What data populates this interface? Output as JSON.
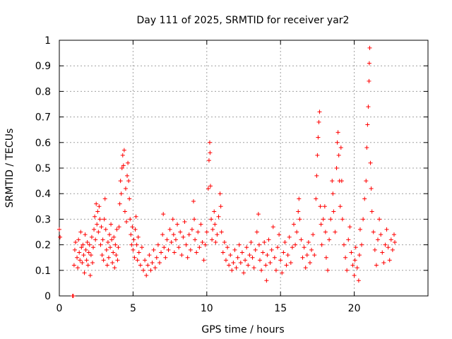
{
  "chart_data": {
    "type": "scatter",
    "title": "Day 111 of 2025, SRMTID for receiver yar2",
    "xlabel": "GPS time / hours",
    "ylabel": "SRMTID / TECUs",
    "xlim": [
      0,
      25
    ],
    "ylim": [
      0,
      1
    ],
    "xticks": [
      0,
      5,
      10,
      15,
      20
    ],
    "yticks": [
      0,
      0.1,
      0.2,
      0.3,
      0.4,
      0.5,
      0.6,
      0.7,
      0.8,
      0.9,
      1
    ],
    "xtick_labels": [
      "0",
      "5",
      "10",
      "15",
      "20"
    ],
    "ytick_labels": [
      "0",
      "0.1",
      "0.2",
      "0.3",
      "0.4",
      "0.5",
      "0.6",
      "0.7",
      "0.8",
      "0.9",
      "1"
    ],
    "grid": true,
    "marker": "plus",
    "color": "#ff0000",
    "series": [
      {
        "name": "SRMTID",
        "points": [
          [
            0.0,
            0.26
          ],
          [
            0.05,
            0.23
          ],
          [
            0.9,
            0.0
          ],
          [
            0.95,
            0.0
          ],
          [
            1.0,
            0.12
          ],
          [
            1.05,
            0.18
          ],
          [
            1.1,
            0.21
          ],
          [
            1.2,
            0.15
          ],
          [
            1.25,
            0.11
          ],
          [
            1.3,
            0.22
          ],
          [
            1.35,
            0.17
          ],
          [
            1.4,
            0.14
          ],
          [
            1.45,
            0.25
          ],
          [
            1.5,
            0.19
          ],
          [
            1.55,
            0.13
          ],
          [
            1.6,
            0.2
          ],
          [
            1.65,
            0.16
          ],
          [
            1.7,
            0.09
          ],
          [
            1.75,
            0.24
          ],
          [
            1.8,
            0.18
          ],
          [
            1.85,
            0.14
          ],
          [
            1.9,
            0.21
          ],
          [
            1.95,
            0.12
          ],
          [
            2.0,
            0.17
          ],
          [
            2.05,
            0.2
          ],
          [
            2.1,
            0.08
          ],
          [
            2.15,
            0.16
          ],
          [
            2.2,
            0.23
          ],
          [
            2.25,
            0.13
          ],
          [
            2.3,
            0.19
          ],
          [
            2.35,
            0.26
          ],
          [
            2.4,
            0.31
          ],
          [
            2.45,
            0.22
          ],
          [
            2.5,
            0.36
          ],
          [
            2.55,
            0.28
          ],
          [
            2.6,
            0.33
          ],
          [
            2.65,
            0.25
          ],
          [
            2.7,
            0.35
          ],
          [
            2.75,
            0.3
          ],
          [
            2.8,
            0.2
          ],
          [
            2.85,
            0.27
          ],
          [
            2.9,
            0.16
          ],
          [
            2.95,
            0.22
          ],
          [
            3.0,
            0.14
          ],
          [
            3.05,
            0.3
          ],
          [
            3.1,
            0.38
          ],
          [
            3.15,
            0.26
          ],
          [
            3.2,
            0.18
          ],
          [
            3.25,
            0.12
          ],
          [
            3.3,
            0.21
          ],
          [
            3.35,
            0.15
          ],
          [
            3.4,
            0.24
          ],
          [
            3.45,
            0.19
          ],
          [
            3.5,
            0.28
          ],
          [
            3.55,
            0.22
          ],
          [
            3.6,
            0.13
          ],
          [
            3.65,
            0.17
          ],
          [
            3.7,
            0.23
          ],
          [
            3.75,
            0.11
          ],
          [
            3.8,
            0.2
          ],
          [
            3.85,
            0.16
          ],
          [
            3.9,
            0.26
          ],
          [
            3.95,
            0.14
          ],
          [
            4.0,
            0.19
          ],
          [
            4.05,
            0.27
          ],
          [
            4.1,
            0.36
          ],
          [
            4.15,
            0.45
          ],
          [
            4.2,
            0.4
          ],
          [
            4.25,
            0.5
          ],
          [
            4.3,
            0.55
          ],
          [
            4.35,
            0.51
          ],
          [
            4.4,
            0.57
          ],
          [
            4.45,
            0.33
          ],
          [
            4.5,
            0.42
          ],
          [
            4.55,
            0.29
          ],
          [
            4.6,
            0.47
          ],
          [
            4.65,
            0.52
          ],
          [
            4.7,
            0.45
          ],
          [
            4.75,
            0.38
          ],
          [
            4.8,
            0.3
          ],
          [
            4.85,
            0.24
          ],
          [
            4.9,
            0.2
          ],
          [
            4.95,
            0.27
          ],
          [
            5.0,
            0.18
          ],
          [
            5.05,
            0.22
          ],
          [
            5.1,
            0.15
          ],
          [
            5.15,
            0.26
          ],
          [
            5.2,
            0.31
          ],
          [
            5.25,
            0.2
          ],
          [
            5.3,
            0.14
          ],
          [
            5.35,
            0.23
          ],
          [
            5.4,
            0.17
          ],
          [
            5.5,
            0.12
          ],
          [
            5.6,
            0.19
          ],
          [
            5.7,
            0.1
          ],
          [
            5.8,
            0.14
          ],
          [
            5.9,
            0.08
          ],
          [
            6.0,
            0.12
          ],
          [
            6.1,
            0.16
          ],
          [
            6.2,
            0.1
          ],
          [
            6.3,
            0.13
          ],
          [
            6.4,
            0.18
          ],
          [
            6.5,
            0.11
          ],
          [
            6.6,
            0.15
          ],
          [
            6.7,
            0.2
          ],
          [
            6.8,
            0.13
          ],
          [
            6.9,
            0.17
          ],
          [
            7.0,
            0.24
          ],
          [
            7.05,
            0.32
          ],
          [
            7.1,
            0.19
          ],
          [
            7.2,
            0.15
          ],
          [
            7.3,
            0.22
          ],
          [
            7.4,
            0.18
          ],
          [
            7.5,
            0.26
          ],
          [
            7.6,
            0.21
          ],
          [
            7.7,
            0.3
          ],
          [
            7.75,
            0.24
          ],
          [
            7.8,
            0.17
          ],
          [
            7.9,
            0.22
          ],
          [
            8.0,
            0.28
          ],
          [
            8.1,
            0.19
          ],
          [
            8.2,
            0.25
          ],
          [
            8.3,
            0.16
          ],
          [
            8.4,
            0.23
          ],
          [
            8.5,
            0.29
          ],
          [
            8.6,
            0.2
          ],
          [
            8.7,
            0.15
          ],
          [
            8.8,
            0.24
          ],
          [
            8.9,
            0.18
          ],
          [
            9.0,
            0.26
          ],
          [
            9.1,
            0.37
          ],
          [
            9.15,
            0.3
          ],
          [
            9.2,
            0.22
          ],
          [
            9.3,
            0.17
          ],
          [
            9.4,
            0.25
          ],
          [
            9.5,
            0.19
          ],
          [
            9.6,
            0.28
          ],
          [
            9.7,
            0.21
          ],
          [
            9.8,
            0.14
          ],
          [
            9.9,
            0.2
          ],
          [
            10.0,
            0.25
          ],
          [
            10.1,
            0.42
          ],
          [
            10.15,
            0.53
          ],
          [
            10.2,
            0.6
          ],
          [
            10.22,
            0.56
          ],
          [
            10.25,
            0.43
          ],
          [
            10.3,
            0.3
          ],
          [
            10.35,
            0.22
          ],
          [
            10.4,
            0.26
          ],
          [
            10.5,
            0.33
          ],
          [
            10.55,
            0.28
          ],
          [
            10.6,
            0.21
          ],
          [
            10.7,
            0.24
          ],
          [
            10.8,
            0.31
          ],
          [
            10.9,
            0.4
          ],
          [
            10.95,
            0.35
          ],
          [
            11.0,
            0.25
          ],
          [
            11.1,
            0.17
          ],
          [
            11.2,
            0.21
          ],
          [
            11.3,
            0.14
          ],
          [
            11.4,
            0.19
          ],
          [
            11.5,
            0.12
          ],
          [
            11.6,
            0.16
          ],
          [
            11.7,
            0.1
          ],
          [
            11.8,
            0.13
          ],
          [
            11.9,
            0.18
          ],
          [
            12.0,
            0.11
          ],
          [
            12.1,
            0.15
          ],
          [
            12.2,
            0.2
          ],
          [
            12.3,
            0.13
          ],
          [
            12.4,
            0.17
          ],
          [
            12.5,
            0.09
          ],
          [
            12.6,
            0.14
          ],
          [
            12.7,
            0.19
          ],
          [
            12.8,
            0.12
          ],
          [
            12.9,
            0.16
          ],
          [
            13.0,
            0.21
          ],
          [
            13.1,
            0.15
          ],
          [
            13.2,
            0.11
          ],
          [
            13.3,
            0.18
          ],
          [
            13.4,
            0.25
          ],
          [
            13.5,
            0.32
          ],
          [
            13.55,
            0.2
          ],
          [
            13.6,
            0.14
          ],
          [
            13.7,
            0.1
          ],
          [
            13.8,
            0.17
          ],
          [
            13.9,
            0.21
          ],
          [
            14.0,
            0.12
          ],
          [
            14.05,
            0.06
          ],
          [
            14.1,
            0.16
          ],
          [
            14.2,
            0.22
          ],
          [
            14.3,
            0.13
          ],
          [
            14.4,
            0.18
          ],
          [
            14.5,
            0.27
          ],
          [
            14.6,
            0.15
          ],
          [
            14.7,
            0.1
          ],
          [
            14.8,
            0.19
          ],
          [
            14.9,
            0.24
          ],
          [
            15.0,
            0.14
          ],
          [
            15.1,
            0.09
          ],
          [
            15.2,
            0.17
          ],
          [
            15.3,
            0.21
          ],
          [
            15.4,
            0.12
          ],
          [
            15.5,
            0.16
          ],
          [
            15.6,
            0.23
          ],
          [
            15.7,
            0.13
          ],
          [
            15.8,
            0.19
          ],
          [
            15.9,
            0.28
          ],
          [
            16.0,
            0.2
          ],
          [
            16.1,
            0.25
          ],
          [
            16.2,
            0.33
          ],
          [
            16.25,
            0.38
          ],
          [
            16.3,
            0.3
          ],
          [
            16.4,
            0.22
          ],
          [
            16.5,
            0.15
          ],
          [
            16.6,
            0.19
          ],
          [
            16.7,
            0.11
          ],
          [
            16.8,
            0.16
          ],
          [
            16.9,
            0.21
          ],
          [
            17.0,
            0.13
          ],
          [
            17.1,
            0.18
          ],
          [
            17.2,
            0.24
          ],
          [
            17.3,
            0.16
          ],
          [
            17.4,
            0.38
          ],
          [
            17.45,
            0.47
          ],
          [
            17.5,
            0.55
          ],
          [
            17.55,
            0.62
          ],
          [
            17.6,
            0.68
          ],
          [
            17.65,
            0.72
          ],
          [
            17.7,
            0.35
          ],
          [
            17.75,
            0.28
          ],
          [
            17.8,
            0.2
          ],
          [
            17.9,
            0.3
          ],
          [
            18.0,
            0.35
          ],
          [
            18.05,
            0.25
          ],
          [
            18.1,
            0.15
          ],
          [
            18.2,
            0.1
          ],
          [
            18.3,
            0.22
          ],
          [
            18.4,
            0.3
          ],
          [
            18.5,
            0.45
          ],
          [
            18.55,
            0.4
          ],
          [
            18.6,
            0.33
          ],
          [
            18.7,
            0.25
          ],
          [
            18.8,
            0.5
          ],
          [
            18.85,
            0.6
          ],
          [
            18.9,
            0.64
          ],
          [
            18.95,
            0.55
          ],
          [
            19.0,
            0.45
          ],
          [
            19.05,
            0.35
          ],
          [
            19.1,
            0.58
          ],
          [
            19.15,
            0.45
          ],
          [
            19.2,
            0.3
          ],
          [
            19.3,
            0.2
          ],
          [
            19.4,
            0.15
          ],
          [
            19.5,
            0.1
          ],
          [
            19.6,
            0.22
          ],
          [
            19.7,
            0.27
          ],
          [
            19.8,
            0.17
          ],
          [
            19.9,
            0.12
          ],
          [
            20.0,
            0.08
          ],
          [
            20.05,
            0.14
          ],
          [
            20.1,
            0.19
          ],
          [
            20.2,
            0.11
          ],
          [
            20.3,
            0.06
          ],
          [
            20.35,
            0.16
          ],
          [
            20.4,
            0.26
          ],
          [
            20.5,
            0.2
          ],
          [
            20.6,
            0.3
          ],
          [
            20.7,
            0.38
          ],
          [
            20.8,
            0.45
          ],
          [
            20.85,
            0.58
          ],
          [
            20.9,
            0.67
          ],
          [
            20.95,
            0.74
          ],
          [
            21.0,
            0.84
          ],
          [
            21.02,
            0.91
          ],
          [
            21.05,
            0.97
          ],
          [
            21.1,
            0.52
          ],
          [
            21.15,
            0.42
          ],
          [
            21.2,
            0.33
          ],
          [
            21.3,
            0.25
          ],
          [
            21.4,
            0.18
          ],
          [
            21.5,
            0.12
          ],
          [
            21.6,
            0.22
          ],
          [
            21.7,
            0.3
          ],
          [
            21.8,
            0.24
          ],
          [
            21.9,
            0.17
          ],
          [
            22.0,
            0.13
          ],
          [
            22.1,
            0.2
          ],
          [
            22.2,
            0.26
          ],
          [
            22.3,
            0.19
          ],
          [
            22.4,
            0.14
          ],
          [
            22.5,
            0.22
          ],
          [
            22.6,
            0.18
          ],
          [
            22.7,
            0.24
          ],
          [
            22.75,
            0.21
          ]
        ]
      }
    ]
  }
}
